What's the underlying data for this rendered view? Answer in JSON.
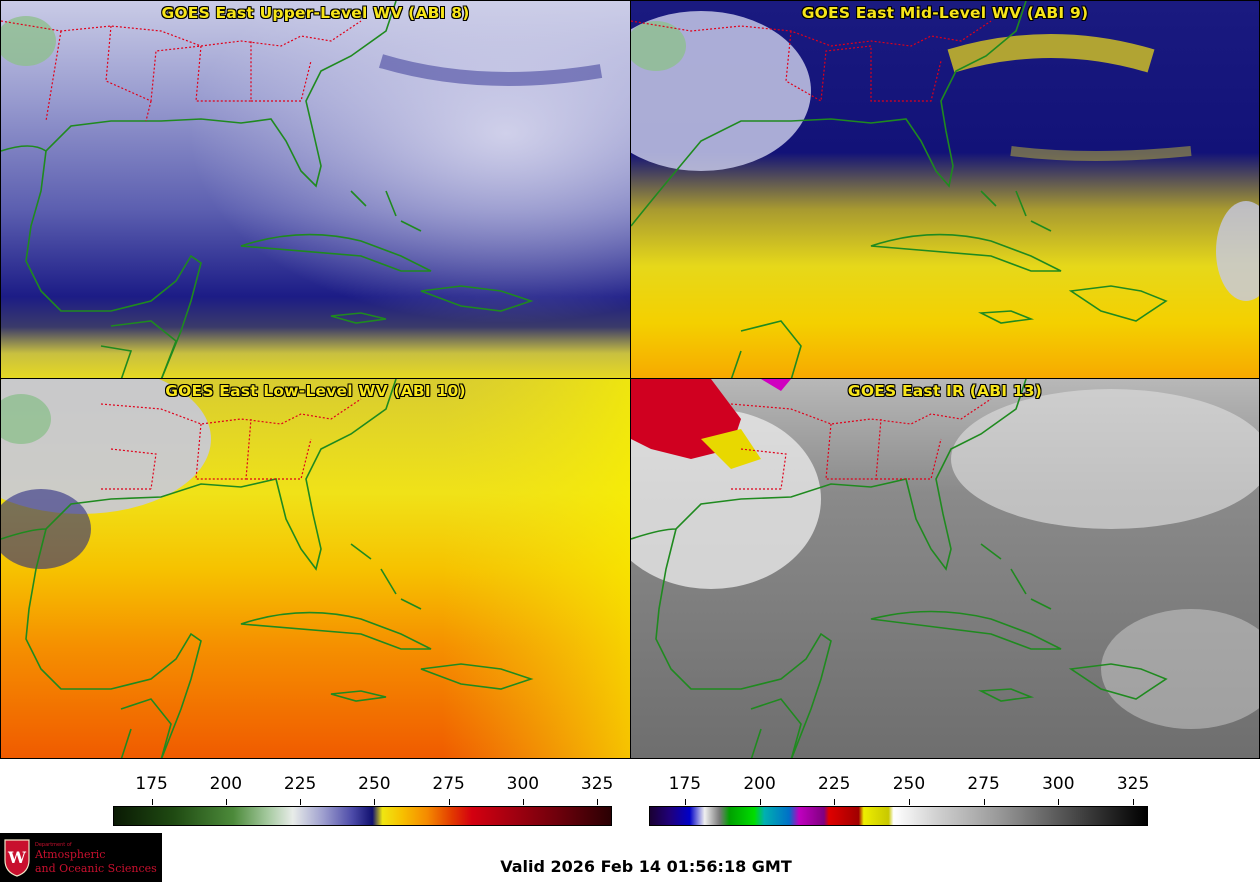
{
  "panels": [
    {
      "title": "GOES East Upper-Level WV (ABI 8)"
    },
    {
      "title": "GOES East Mid-Level WV (ABI 9)"
    },
    {
      "title": "GOES East Low-Level WV (ABI 10)"
    },
    {
      "title": "GOES East IR (ABI 13)"
    }
  ],
  "colorbars": {
    "wv": {
      "ticks": [
        "175",
        "200",
        "225",
        "250",
        "275",
        "300",
        "325"
      ],
      "tick_values": [
        175,
        200,
        225,
        250,
        275,
        300,
        325
      ],
      "range": [
        162,
        330
      ]
    },
    "ir": {
      "ticks": [
        "175",
        "200",
        "225",
        "250",
        "275",
        "300",
        "325"
      ],
      "tick_values": [
        175,
        200,
        225,
        250,
        275,
        300,
        325
      ],
      "range": [
        163,
        330
      ]
    }
  },
  "logo": {
    "small": "Department of",
    "line1": "Atmospheric",
    "line2": "and Oceanic Sciences",
    "badge": "W"
  },
  "footer": {
    "valid": "Valid 2026 Feb 14 01:56:18 GMT"
  },
  "colors": {
    "title": "#f7e51a",
    "coastline": "#1f8a1f",
    "state_border": "#e0001a",
    "logo_red": "#c8102e"
  }
}
